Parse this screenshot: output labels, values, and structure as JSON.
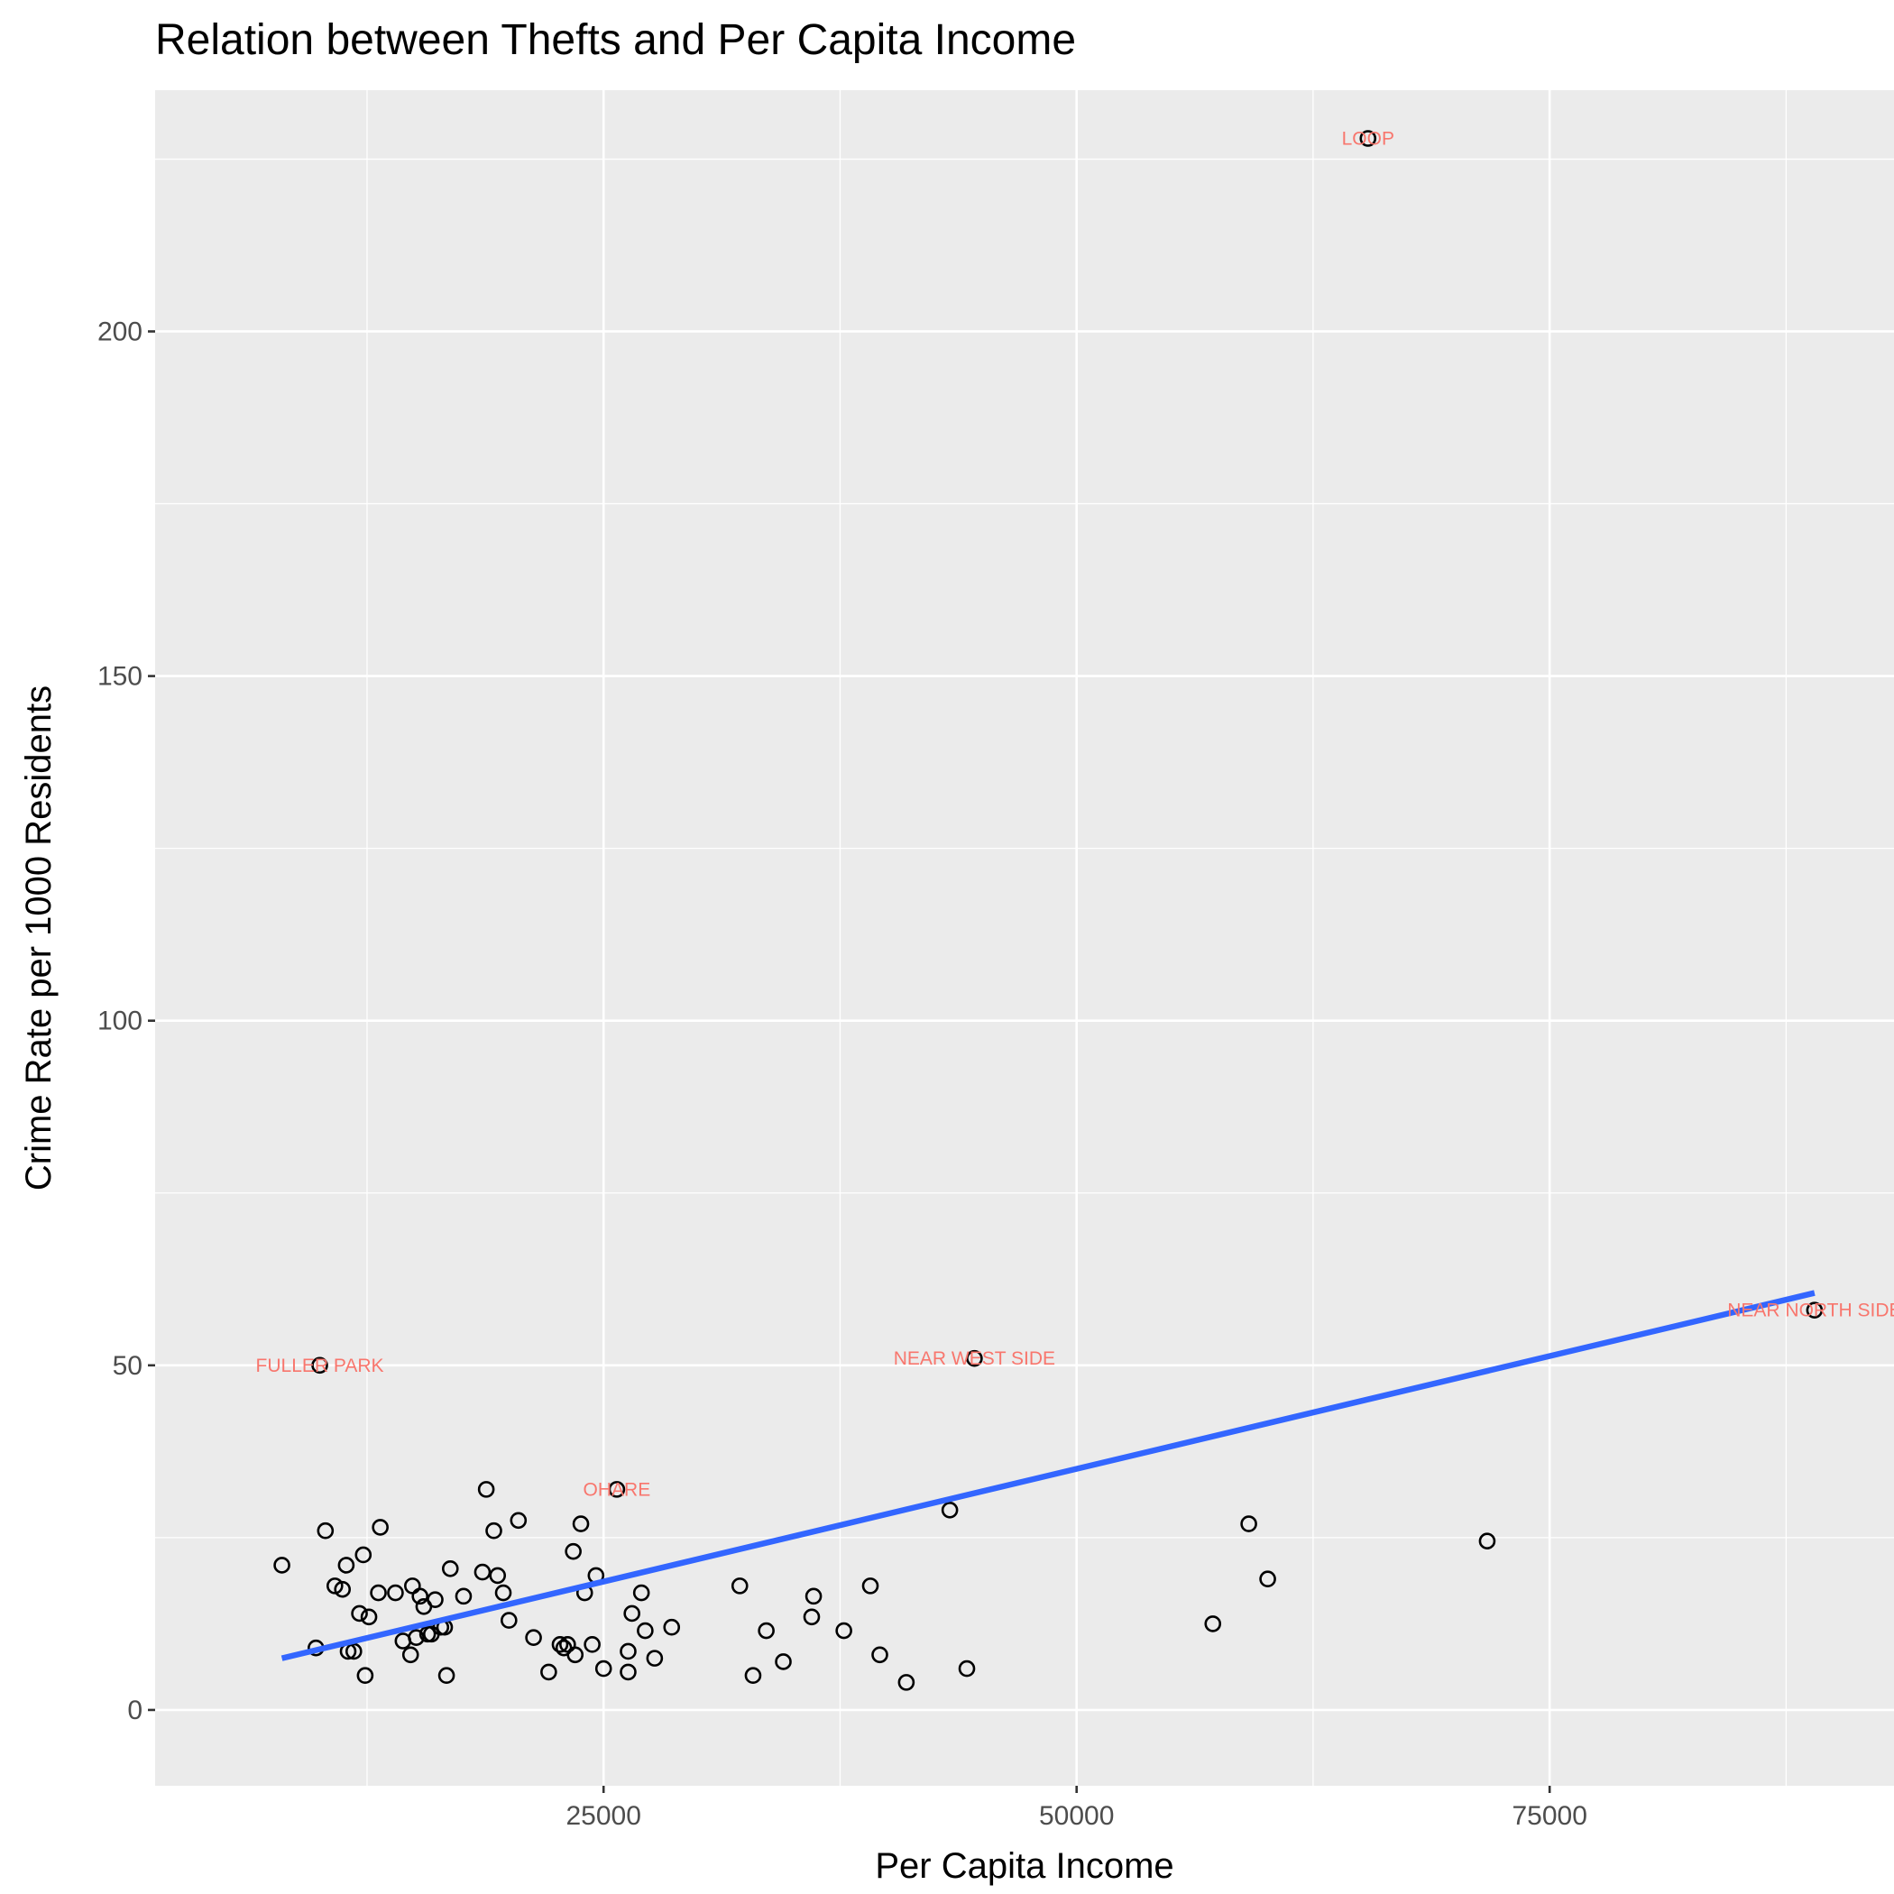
{
  "chart_data": {
    "type": "scatter",
    "title": "Relation between Thefts and Per Capita Income",
    "xlabel": "Per Capita Income",
    "ylabel": "Crime Rate per 1000 Residents",
    "xlim": [
      1300,
      93200
    ],
    "ylim": [
      -11,
      235
    ],
    "xticks": [
      25000,
      50000,
      75000
    ],
    "yticks": [
      0,
      50,
      100,
      150,
      200
    ],
    "xtick_labels": [
      "25000",
      "50000",
      "75000"
    ],
    "ytick_labels": [
      "0",
      "50",
      "100",
      "150",
      "200"
    ],
    "xminor": [
      12500,
      37500,
      62500,
      87500
    ],
    "yminor": [
      25,
      75,
      125,
      175,
      225
    ],
    "grid": true,
    "colors": {
      "panel": "#ebebeb",
      "grid": "#ffffff",
      "trend": "#3366ff",
      "annotation": "#f8766d",
      "point_stroke": "#000000"
    },
    "points": [
      [
        65400,
        228
      ],
      [
        89000,
        58
      ],
      [
        44600,
        51
      ],
      [
        10000,
        50
      ],
      [
        25700,
        32
      ],
      [
        8000,
        21
      ],
      [
        9800,
        9
      ],
      [
        10300,
        26
      ],
      [
        10800,
        18
      ],
      [
        11200,
        17.5
      ],
      [
        11400,
        21
      ],
      [
        11500,
        8.5
      ],
      [
        11800,
        8.5
      ],
      [
        12100,
        14
      ],
      [
        12300,
        22.5
      ],
      [
        12400,
        5
      ],
      [
        12600,
        13.5
      ],
      [
        13100,
        17
      ],
      [
        13200,
        26.5
      ],
      [
        14000,
        17
      ],
      [
        14400,
        10
      ],
      [
        14800,
        8
      ],
      [
        14900,
        18
      ],
      [
        15100,
        10.5
      ],
      [
        15300,
        16.5
      ],
      [
        15500,
        15
      ],
      [
        15700,
        11
      ],
      [
        15900,
        11
      ],
      [
        16100,
        16
      ],
      [
        16400,
        12
      ],
      [
        16600,
        12
      ],
      [
        16700,
        5
      ],
      [
        16900,
        20.5
      ],
      [
        17600,
        16.5
      ],
      [
        18600,
        20
      ],
      [
        18800,
        32
      ],
      [
        19200,
        26
      ],
      [
        19400,
        19.5
      ],
      [
        19700,
        17
      ],
      [
        20000,
        13
      ],
      [
        20500,
        27.5
      ],
      [
        21300,
        10.5
      ],
      [
        22100,
        5.5
      ],
      [
        22700,
        9.5
      ],
      [
        22900,
        9
      ],
      [
        23100,
        9.5
      ],
      [
        23400,
        23
      ],
      [
        23500,
        8
      ],
      [
        23800,
        27
      ],
      [
        24000,
        17
      ],
      [
        24400,
        9.5
      ],
      [
        24600,
        19.5
      ],
      [
        25000,
        6
      ],
      [
        26300,
        5.5
      ],
      [
        26300,
        8.5
      ],
      [
        26500,
        14
      ],
      [
        27000,
        17
      ],
      [
        27200,
        11.5
      ],
      [
        27700,
        7.5
      ],
      [
        28600,
        12
      ],
      [
        32200,
        18
      ],
      [
        32900,
        5
      ],
      [
        33600,
        11.5
      ],
      [
        34500,
        7
      ],
      [
        36000,
        13.5
      ],
      [
        36100,
        16.5
      ],
      [
        37700,
        11.5
      ],
      [
        39100,
        18
      ],
      [
        39600,
        8
      ],
      [
        41000,
        4
      ],
      [
        43300,
        29
      ],
      [
        44200,
        6
      ],
      [
        57200,
        12.5
      ],
      [
        59100,
        27
      ],
      [
        60100,
        19
      ],
      [
        71700,
        24.5
      ]
    ],
    "annotations": [
      {
        "label": "LOOP",
        "x": 65400,
        "y": 228
      },
      {
        "label": "NEAR NORTH SIDE",
        "x": 89000,
        "y": 58
      },
      {
        "label": "NEAR WEST SIDE",
        "x": 44600,
        "y": 51
      },
      {
        "label": "FULLER PARK",
        "x": 10000,
        "y": 50
      },
      {
        "label": "OHARE",
        "x": 25700,
        "y": 32
      }
    ],
    "trend_line": {
      "method": "linear",
      "x": [
        8000,
        89000
      ],
      "y": [
        7.5,
        60.5
      ]
    }
  }
}
